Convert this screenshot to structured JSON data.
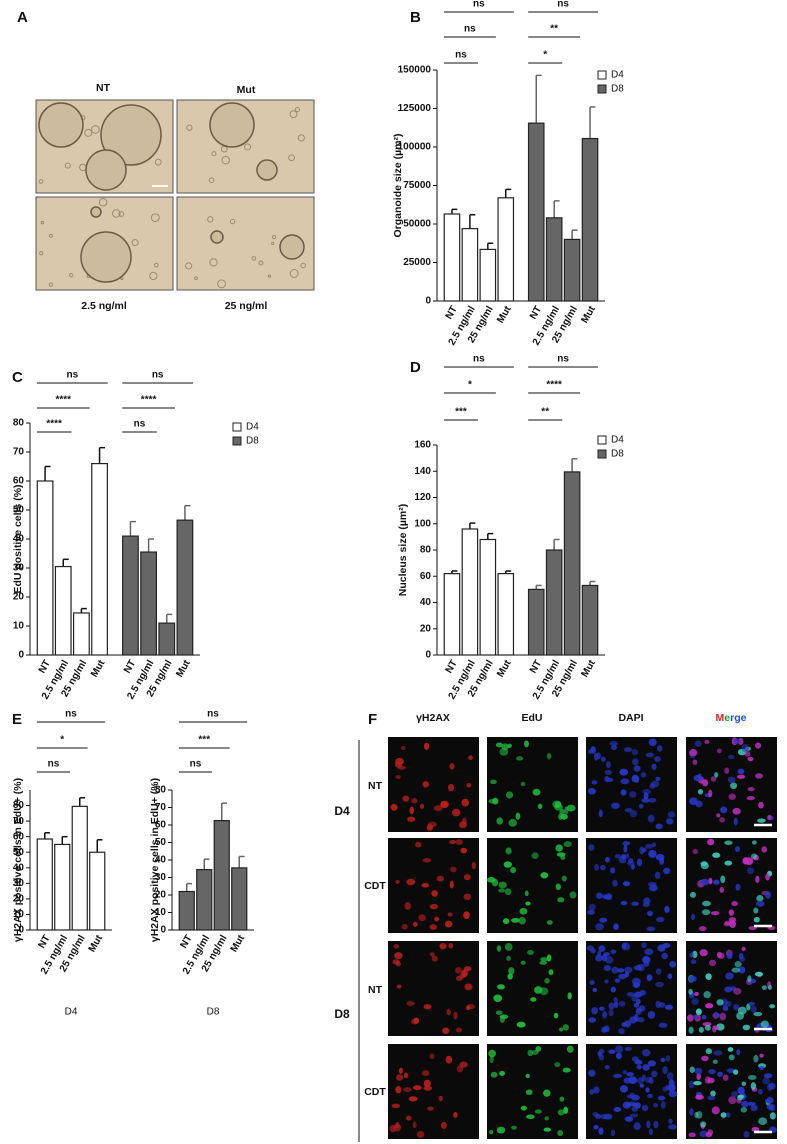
{
  "panel_labels": [
    "A",
    "B",
    "C",
    "D",
    "E",
    "F"
  ],
  "panel_a": {
    "columns": [
      "NT",
      "Mut"
    ],
    "bottom_labels": [
      "2.5 ng/ml",
      "25 ng/ml"
    ]
  },
  "panel_f": {
    "columns": [
      "γH2AX",
      "EdU",
      "DAPI",
      "Merge"
    ],
    "groups": [
      "D4",
      "D8"
    ],
    "rows": [
      "NT",
      "CDT",
      "NT",
      "CDT"
    ]
  },
  "chart_data": [
    {
      "type": "bar",
      "ylabel": "Organoide size (µm²)",
      "categories": [
        "NT",
        "2.5 ng/ml",
        "25 ng/ml",
        "Mut",
        "NT",
        "2.5 ng/ml",
        "25 ng/ml",
        "Mut"
      ],
      "series": [
        {
          "name": "D4",
          "color": "#ffffff",
          "values": [
            56500,
            47000,
            33500,
            67000,
            null,
            null,
            null,
            null
          ],
          "errors": [
            3000,
            9000,
            4000,
            5500,
            null,
            null,
            null,
            null
          ]
        },
        {
          "name": "D8",
          "color": "#666666",
          "values": [
            null,
            null,
            null,
            null,
            115500,
            54000,
            40000,
            105500
          ],
          "errors": [
            null,
            null,
            null,
            null,
            31000,
            11000,
            6000,
            20500
          ]
        }
      ],
      "ylim": [
        0,
        150000
      ],
      "yticks": [
        0,
        25000,
        50000,
        75000,
        100000,
        125000,
        150000
      ],
      "annotations": [
        "ns",
        "ns",
        "ns",
        "ns",
        "**",
        "*"
      ]
    },
    {
      "type": "bar",
      "ylabel": "EdU positive cells (%)",
      "categories": [
        "NT",
        "2.5 ng/ml",
        "25 ng/ml",
        "Mut",
        "NT",
        "2.5 ng/ml",
        "25 ng/ml",
        "Mut"
      ],
      "series": [
        {
          "name": "D4",
          "color": "#ffffff",
          "values": [
            60,
            30.5,
            14.5,
            66,
            null,
            null,
            null,
            null
          ],
          "errors": [
            5,
            2.5,
            1.5,
            5.5,
            null,
            null,
            null,
            null
          ]
        },
        {
          "name": "D8",
          "color": "#666666",
          "values": [
            null,
            null,
            null,
            null,
            41,
            35.5,
            11,
            46.5
          ],
          "errors": [
            null,
            null,
            null,
            null,
            5,
            4.5,
            3,
            5
          ]
        }
      ],
      "ylim": [
        0,
        80
      ],
      "yticks": [
        0,
        10,
        20,
        30,
        40,
        50,
        60,
        70,
        80
      ],
      "annotations": [
        "ns",
        "****",
        "****",
        "ns",
        "****",
        "ns"
      ]
    },
    {
      "type": "bar",
      "ylabel": "Nucleus size (µm²)",
      "categories": [
        "NT",
        "2.5 ng/ml",
        "25 ng/ml",
        "Mut",
        "NT",
        "2.5 ng/ml",
        "25 ng/ml",
        "Mut"
      ],
      "series": [
        {
          "name": "D4",
          "color": "#ffffff",
          "values": [
            62,
            96,
            88,
            62,
            null,
            null,
            null,
            null
          ],
          "errors": [
            2,
            4.5,
            4.5,
            2,
            null,
            null,
            null,
            null
          ]
        },
        {
          "name": "D8",
          "color": "#666666",
          "values": [
            null,
            null,
            null,
            null,
            50,
            80,
            139.5,
            53
          ],
          "errors": [
            null,
            null,
            null,
            null,
            3,
            8,
            10,
            3
          ]
        }
      ],
      "ylim": [
        0,
        160
      ],
      "yticks": [
        0,
        20,
        40,
        60,
        80,
        100,
        120,
        140,
        160
      ],
      "annotations": [
        "ns",
        "*",
        "***",
        "ns",
        "****",
        "**"
      ]
    },
    {
      "type": "bar",
      "ylabel": "γH2AX positive cells in EdU+ (%)",
      "xlabel": "D4",
      "categories": [
        "NT",
        "2.5 ng/ml",
        "25 ng/ml",
        "Mut"
      ],
      "series": [
        {
          "color": "#ffffff",
          "values": [
            58.5,
            55,
            79.5,
            50
          ],
          "errors": [
            4,
            5,
            5.5,
            8
          ]
        }
      ],
      "ylim": [
        0,
        90
      ],
      "yticks": [
        0,
        10,
        20,
        30,
        40,
        50,
        60,
        70,
        80
      ],
      "annotations": [
        "ns",
        "*",
        "ns"
      ]
    },
    {
      "type": "bar",
      "ylabel": "γH2AX positive cells in EdU+ (%)",
      "xlabel": "D8",
      "categories": [
        "NT",
        "2.5 ng/ml",
        "25 ng/ml",
        "Mut"
      ],
      "series": [
        {
          "color": "#666666",
          "values": [
            22,
            34.5,
            62.5,
            35.5
          ],
          "errors": [
            4.5,
            6,
            10,
            6.5
          ]
        }
      ],
      "ylim": [
        0,
        80
      ],
      "yticks": [
        0,
        10,
        20,
        30,
        40,
        50,
        60,
        70,
        80
      ],
      "annotations": [
        "ns",
        "***",
        "ns"
      ]
    }
  ]
}
